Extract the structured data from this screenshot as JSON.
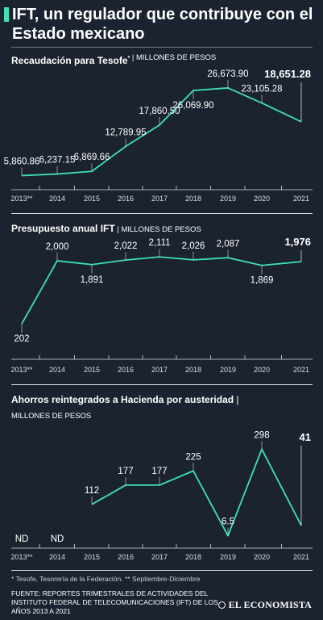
{
  "header": {
    "title": "IFT, un regulador que contribuye con el Estado mexicano",
    "accent_color": "#3fe0b5"
  },
  "colors": {
    "line": "#3fe0b5",
    "text": "#ffffff",
    "rule": "#d9dde3",
    "background": "#1b2330"
  },
  "chart_data": [
    {
      "type": "line",
      "title": "Recaudación para Tesofe",
      "title_marker": "*",
      "subtitle": "MILLONES DE PESOS",
      "categories": [
        "2013**",
        "2014",
        "2015",
        "2016",
        "2017",
        "2018",
        "2019",
        "2020",
        "2021"
      ],
      "series": [
        {
          "values": [
            5860.86,
            6237.15,
            6869.66,
            12789.95,
            17860.5,
            26069.9,
            26673.9,
            23105.28,
            18651.28
          ],
          "labels": [
            "5,860.86",
            "6,237.15",
            "6,869.66",
            "12,789.95",
            "17,860.50",
            "26,069.90",
            "26,673.90",
            "23,105.28",
            "18,651.28"
          ],
          "highlight_last": true
        }
      ],
      "ylim": [
        5000,
        28000
      ],
      "grid": false
    },
    {
      "type": "line",
      "title": "Presupuesto anual IFT",
      "subtitle": "MILLONES DE PESOS",
      "categories": [
        "2013**",
        "2014",
        "2015",
        "2016",
        "2017",
        "2018",
        "2019",
        "2020",
        "2021"
      ],
      "series": [
        {
          "values": [
            202,
            2000,
            1891,
            2022,
            2111,
            2026,
            2087,
            1869,
            1976
          ],
          "labels": [
            "202",
            "2,000",
            "1,891",
            "2,022",
            "2,111",
            "2,026",
            "2,087",
            "1,869",
            "1,976"
          ],
          "highlight_last": true
        }
      ],
      "ylim": [
        0,
        2300
      ],
      "grid": false
    },
    {
      "type": "line",
      "title": "Ahorros reintegrados a Hacienda por austeridad",
      "subtitle": "MILLONES DE PESOS",
      "categories": [
        "2013**",
        "2014",
        "2015",
        "2016",
        "2017",
        "2018",
        "2019",
        "2020",
        "2021"
      ],
      "series": [
        {
          "values": [
            null,
            null,
            112,
            177,
            177,
            225,
            6.5,
            298,
            41
          ],
          "labels": [
            "ND",
            "ND",
            "112",
            "177",
            "177",
            "225",
            "6.5",
            "298",
            "41"
          ],
          "highlight_last": true
        }
      ],
      "ylim": [
        0,
        310
      ],
      "grid": false
    }
  ],
  "footer": {
    "footnote": "* Tesofe, Tesorería de la Federación. ** Septiembre-Diciembre",
    "source": "FUENTE: REPORTES TRIMESTRALES DE ACTIVIDADES DEL INSTITUTO FEDERAL DE TELECOMUNICACIONES (IFT) DE LOS AÑOS 2013 A 2021",
    "brand": "EL ECONOMISTA"
  }
}
